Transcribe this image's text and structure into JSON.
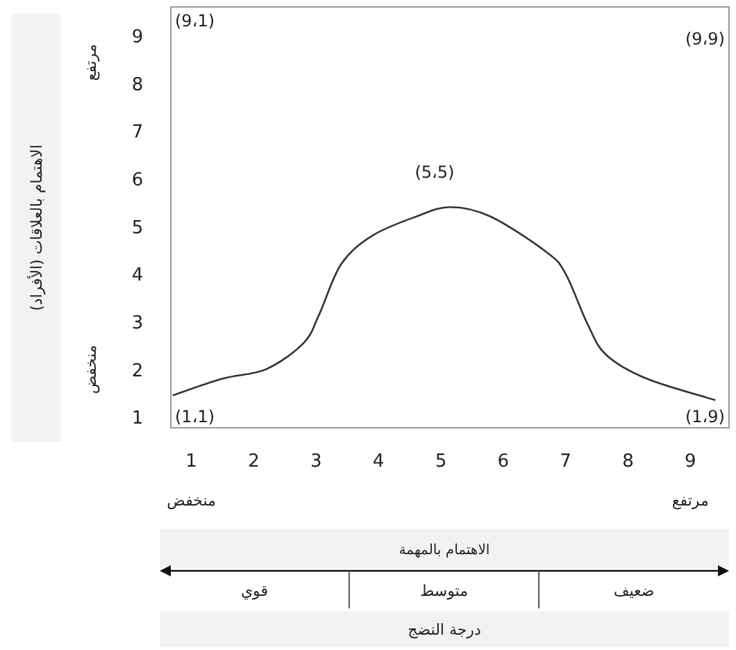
{
  "chart_data": {
    "type": "line",
    "color": "#333333",
    "x": [
      0.7,
      1.5,
      2.2,
      2.8,
      3.05,
      3.4,
      3.9,
      4.6,
      5.15,
      5.8,
      6.7,
      7.0,
      7.35,
      7.65,
      8.3,
      9.4
    ],
    "values": [
      1.45,
      1.8,
      2.0,
      2.55,
      3.15,
      4.2,
      4.8,
      5.2,
      5.4,
      5.2,
      4.45,
      4.0,
      2.95,
      2.3,
      1.8,
      1.35
    ],
    "xlim": [
      0.67,
      9.62
    ],
    "ylim": [
      0.77,
      9.6
    ],
    "xticks": [
      1,
      2,
      3,
      4,
      5,
      6,
      7,
      8,
      9
    ],
    "yticks": [
      1,
      2,
      3,
      4,
      5,
      6,
      7,
      8,
      9
    ],
    "grid": false,
    "marker": "none",
    "line_style": "solid",
    "annotations": [
      "(9،1)",
      "(9،9)",
      "(5،5)",
      "(1،1)",
      "(1،9)",
      "مرتفع",
      "منخفض",
      "منخفض",
      "مرتفع",
      "الاهتمام بالمهمة",
      "قوي",
      "متوسط",
      "ضعيف",
      "درجة النضج",
      "الاهتمام بالعلاقات (الأفراد)"
    ]
  }
}
